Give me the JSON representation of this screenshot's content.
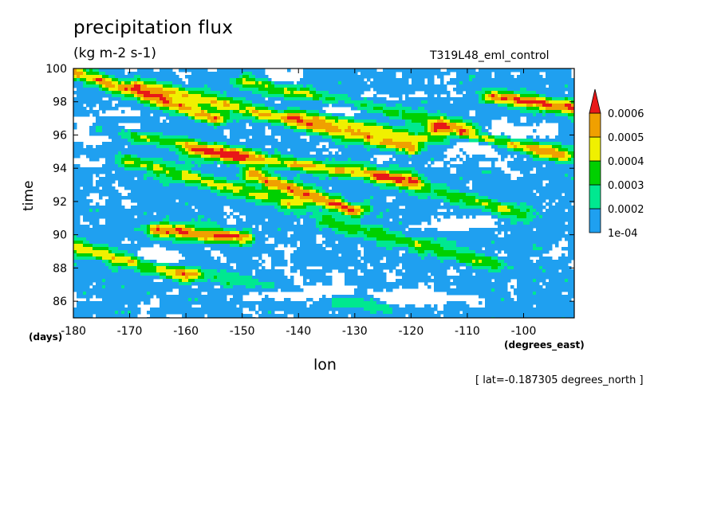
{
  "chart_data": {
    "type": "heatmap",
    "title": "precipitation flux",
    "subtitle": "(kg m-2 s-1)",
    "dataset_label": "T319L48_eml_control",
    "xlabel": "lon",
    "ylabel": "time",
    "x_units": "(degrees_east)",
    "y_units": "(days)",
    "footnote": "[ lat=-0.187305 degrees_north ]",
    "xlim": [
      -180,
      -91
    ],
    "ylim": [
      85,
      100
    ],
    "x_ticks": [
      -180,
      -170,
      -160,
      -150,
      -140,
      -130,
      -120,
      -110,
      -100
    ],
    "x_tick_labels": [
      "-180",
      "-170",
      "-160",
      "-150",
      "-140",
      "-130",
      "-120",
      "-110",
      "-100"
    ],
    "y_ticks": [
      86,
      88,
      90,
      92,
      94,
      96,
      98,
      100
    ],
    "y_tick_labels": [
      "86",
      "88",
      "90",
      "92",
      "94",
      "96",
      "98",
      "100"
    ],
    "colorbar": {
      "levels": [
        0.0001,
        0.0002,
        0.0003,
        0.0004,
        0.0005,
        0.0006
      ],
      "labels": [
        "1e-04",
        "0.0002",
        "0.0003",
        "0.0004",
        "0.0005",
        "0.0006"
      ],
      "colors": [
        "#ffffff",
        "#1fa0f0",
        "#00e890",
        "#00d000",
        "#f0f000",
        "#f0a000",
        "#e81818"
      ],
      "extend": "max"
    },
    "bands": [
      {
        "lon0": -180,
        "t0": 99.8,
        "lon1": -155,
        "t1": 97.0,
        "peak": 0.00062
      },
      {
        "lon0": -168,
        "t0": 99.0,
        "lon1": -120,
        "t1": 95.2,
        "peak": 0.00055
      },
      {
        "lon0": -150,
        "t0": 99.2,
        "lon1": -110,
        "t1": 96.5,
        "peak": 0.00042
      },
      {
        "lon0": -158,
        "t0": 95.0,
        "lon1": -120,
        "t1": 93.3,
        "peak": 0.00052
      },
      {
        "lon0": -170,
        "t0": 94.4,
        "lon1": -140,
        "t1": 91.8,
        "peak": 0.00047
      },
      {
        "lon0": -148,
        "t0": 93.6,
        "lon1": -130,
        "t1": 91.4,
        "peak": 0.00066
      },
      {
        "lon0": -165,
        "t0": 90.3,
        "lon1": -150,
        "t1": 89.8,
        "peak": 0.00068
      },
      {
        "lon0": -180,
        "t0": 89.3,
        "lon1": -160,
        "t1": 87.5,
        "peak": 0.00053
      },
      {
        "lon0": -115,
        "t0": 96.4,
        "lon1": -93,
        "t1": 94.8,
        "peak": 0.00064
      },
      {
        "lon0": -105,
        "t0": 98.3,
        "lon1": -91,
        "t1": 97.6,
        "peak": 0.00066
      },
      {
        "lon0": -135,
        "t0": 90.8,
        "lon1": -105,
        "t1": 88.2,
        "peak": 0.0004
      },
      {
        "lon0": -140,
        "t0": 97.3,
        "lon1": -115,
        "t1": 95.6,
        "peak": 0.00043
      },
      {
        "lon0": -125,
        "t0": 93.5,
        "lon1": -100,
        "t1": 91.2,
        "peak": 0.00041
      },
      {
        "lon0": -160,
        "t0": 87.8,
        "lon1": -125,
        "t1": 85.6,
        "peak": 0.00031
      },
      {
        "lon0": -175,
        "t0": 96.3,
        "lon1": -150,
        "t1": 94.8,
        "peak": 0.00042
      }
    ],
    "dry_patches": [
      {
        "lon": -174,
        "t": 96.2,
        "rx": 6,
        "ry": 0.6
      },
      {
        "lon": -132,
        "t": 97.7,
        "rx": 7,
        "ry": 0.55
      },
      {
        "lon": -106,
        "t": 95.7,
        "rx": 8,
        "ry": 0.9
      },
      {
        "lon": -139,
        "t": 86.5,
        "rx": 8,
        "ry": 0.5
      },
      {
        "lon": -165,
        "t": 88.6,
        "rx": 4,
        "ry": 0.5
      },
      {
        "lon": -143,
        "t": 99.5,
        "rx": 3,
        "ry": 0.35
      },
      {
        "lon": -110,
        "t": 90.7,
        "rx": 5,
        "ry": 0.35
      },
      {
        "lon": -120,
        "t": 86.2,
        "rx": 6,
        "ry": 0.35
      }
    ]
  }
}
